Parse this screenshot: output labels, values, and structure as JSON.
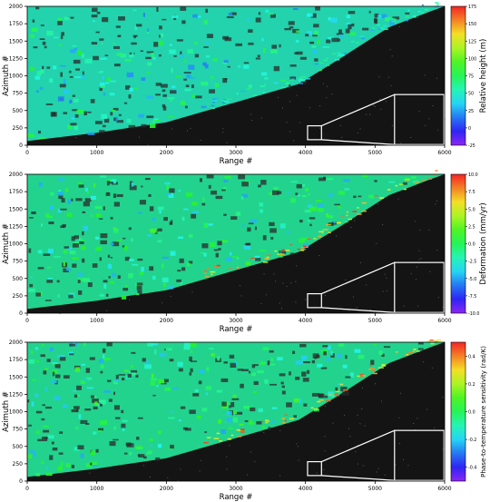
{
  "chart_data": [
    {
      "type": "heatmap",
      "xlabel": "Range #",
      "ylabel": "Azimuth #",
      "xlim": [
        0,
        6000
      ],
      "ylim": [
        0,
        2000
      ],
      "xticks": [
        "0",
        "1000",
        "2000",
        "3000",
        "4000",
        "5000",
        "6000"
      ],
      "yticks": [
        "0",
        "250",
        "500",
        "750",
        "1000",
        "1250",
        "1500",
        "1750",
        "2000"
      ],
      "colorbar": {
        "label": "Relative height (m)",
        "range": [
          -25,
          175
        ],
        "ticks": [
          "175",
          "150",
          "125",
          "100",
          "75",
          "50",
          "25",
          "0",
          "-25"
        ],
        "colormap": "rainbow"
      }
    },
    {
      "type": "heatmap",
      "xlabel": "Range #",
      "ylabel": "Azimuth #",
      "xlim": [
        0,
        6000
      ],
      "ylim": [
        0,
        2000
      ],
      "xticks": [
        "0",
        "1000",
        "2000",
        "3000",
        "4000",
        "5000",
        "6000"
      ],
      "yticks": [
        "0",
        "250",
        "500",
        "750",
        "1000",
        "1250",
        "1500",
        "1750",
        "2000"
      ],
      "colorbar": {
        "label": "Deformation (mm/yr)",
        "range": [
          -10,
          10
        ],
        "ticks": [
          "10.0",
          "7.5",
          "5.0",
          "2.5",
          "0.0",
          "-2.5",
          "-5.0",
          "-7.5",
          "-10.0"
        ],
        "colormap": "rainbow"
      }
    },
    {
      "type": "heatmap",
      "xlabel": "Range #",
      "ylabel": "Azimuth #",
      "xlim": [
        0,
        6000
      ],
      "ylim": [
        0,
        2000
      ],
      "xticks": [
        "0",
        "1000",
        "2000",
        "3000",
        "4000",
        "5000",
        "6000"
      ],
      "yticks": [
        "0",
        "250",
        "500",
        "750",
        "1000",
        "1250",
        "1500",
        "1750",
        "2000"
      ],
      "colorbar": {
        "label": "Phase-to-temperature sensitivity (rad/K)",
        "range": [
          -0.5,
          0.5
        ],
        "ticks": [
          "0.4",
          "0.2",
          "0.0",
          "-0.2",
          "-0.4"
        ],
        "colormap": "rainbow"
      }
    }
  ]
}
